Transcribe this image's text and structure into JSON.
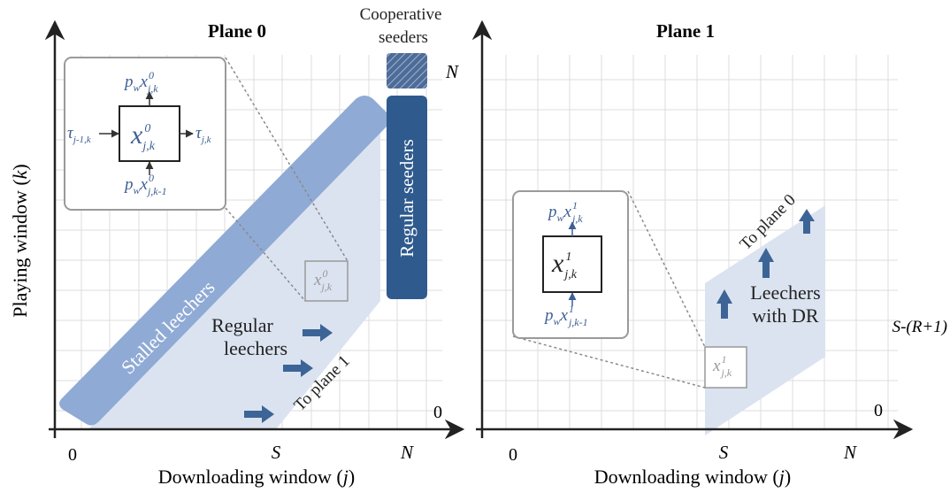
{
  "colors": {
    "axis": "#222222",
    "grid": "#dcdcdc",
    "stalled": "#8faad4",
    "regular_region": "#dbe3f0",
    "regular_seeders": "#2f5a8e",
    "cooperative": "#6b86ad",
    "arrow": "#3d6496",
    "math_blue": "#3d5f95",
    "inset_border": "#9a9a9a",
    "dashed": "#8a8a8a"
  },
  "plane0": {
    "title": "Plane 0",
    "ylabel_main": "Playing window (",
    "ylabel_var": "k",
    "ylabel_end": ")",
    "xlabel_main": "Downloading window (",
    "xlabel_var": "j",
    "xlabel_end": ")",
    "x_tick_0": "0",
    "x_tick_S": "S",
    "x_tick_N": "N",
    "y_tick_0": "0",
    "y_tick_N": "N",
    "cooperative_label_1": "Cooperative",
    "cooperative_label_2": "seeders",
    "regular_seeders_label": "Regular seeders",
    "stalled_label": "Stalled leechers",
    "regular_leechers_1": "Regular",
    "regular_leechers_2": "leechers",
    "to_plane_1": "To plane 1",
    "state_var": "x",
    "state_sub": "j,k",
    "state_sup": "0",
    "inset": {
      "center_var": "x",
      "center_sub": "j,k",
      "center_sup": "0",
      "top_p": "p",
      "top_p_sub": "w",
      "top_var": "x",
      "top_sub": "j,k",
      "top_sup": "0",
      "bottom_p": "p",
      "bottom_p_sub": "w",
      "bottom_var": "x",
      "bottom_sub": "j,k-1",
      "bottom_sup": "0",
      "left_tau": "τ",
      "left_sub": "j-1,k",
      "right_tau": "τ",
      "right_sub": "j,k"
    }
  },
  "plane1": {
    "title": "Plane 1",
    "xlabel_main": "Downloading window (",
    "xlabel_var": "j",
    "xlabel_end": ")",
    "x_tick_0": "0",
    "x_tick_S": "S",
    "x_tick_N": "N",
    "y_tick_0": "0",
    "y_tick_SR": "S-(R+1)",
    "leechers_dr_1": "Leechers",
    "leechers_dr_2": "with DR",
    "to_plane_0": "To plane 0",
    "state_var": "x",
    "state_sub": "j,k",
    "state_sup": "1",
    "inset": {
      "center_var": "x",
      "center_sub": "j,k",
      "center_sup": "1",
      "top_p": "p",
      "top_p_sub": "w",
      "top_var": "x",
      "top_sub": "j,k",
      "top_sup": "1",
      "bottom_p": "p",
      "bottom_p_sub": "w",
      "bottom_var": "x",
      "bottom_sub": "j,k-1",
      "bottom_sup": "1"
    }
  }
}
